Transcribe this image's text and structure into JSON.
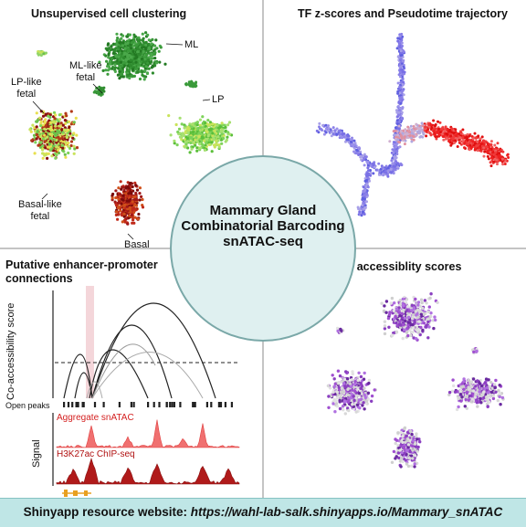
{
  "panels": {
    "clustering": {
      "title": "Unsupervised cell clustering",
      "labels": {
        "ml": "ML",
        "ml_like_fetal": [
          "ML-like",
          "fetal"
        ],
        "lp_like_fetal": [
          "LP-like",
          "fetal"
        ],
        "lp": "LP",
        "basal_like_fetal": [
          "Basal-like",
          "fetal"
        ],
        "basal": "Basal"
      }
    },
    "pseudotime": {
      "title": "TF z-scores and Pseudotime trajectory"
    },
    "enhancer": {
      "title_lines": [
        "Putative enhancer-promoter",
        "connections"
      ],
      "y_axis_label": "Co-accessibility score",
      "open_peaks_label": "Open peaks",
      "signal_label": "Signal",
      "track1_label": "Aggregate snATAC",
      "track2_label": "H3K27ac ChIP-seq"
    },
    "gene_accessibility": {
      "title": "Gene accessiblity scores"
    }
  },
  "center": {
    "title_lines": [
      "Mammary Gland",
      "Combinatorial Barcoding",
      "snATAC-seq"
    ]
  },
  "footer": {
    "prefix": "Shinyapp resource website: ",
    "url": "https://wahl-lab-salk.shinyapps.io/Mammary_snATAC"
  },
  "colors": {
    "footer_bg": "#bfe6e6",
    "divider": "#b0b0b0",
    "ml_green": "#2e8b2e",
    "lp_green": "#7dd35a",
    "basal_red": "#a01818",
    "pseudotime_blue": "#7070e0",
    "pseudotime_red": "#ee2020",
    "gene_purple": "#8a3fc0",
    "signal_red": "#cc1a1a"
  }
}
